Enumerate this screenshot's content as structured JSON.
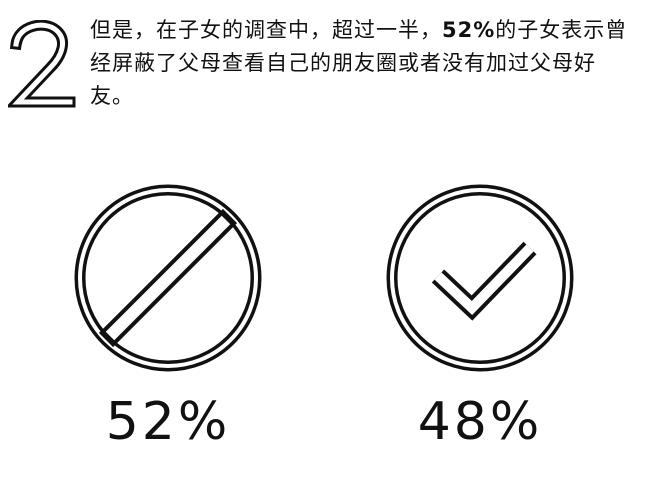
{
  "step": {
    "number": "2",
    "number_color": "#111111"
  },
  "intro": {
    "prefix": "但是，在子女的调查中，超过一半，",
    "highlight": "52%",
    "suffix": "的子女表示曾经屏蔽了父母查看自己的朋友圈或者没有加过父母好友。"
  },
  "stats": [
    {
      "icon": "prohibited-icon",
      "value": "52%"
    },
    {
      "icon": "checkmark-icon",
      "value": "48%"
    }
  ],
  "colors": {
    "ink": "#111111",
    "background": "#ffffff"
  }
}
